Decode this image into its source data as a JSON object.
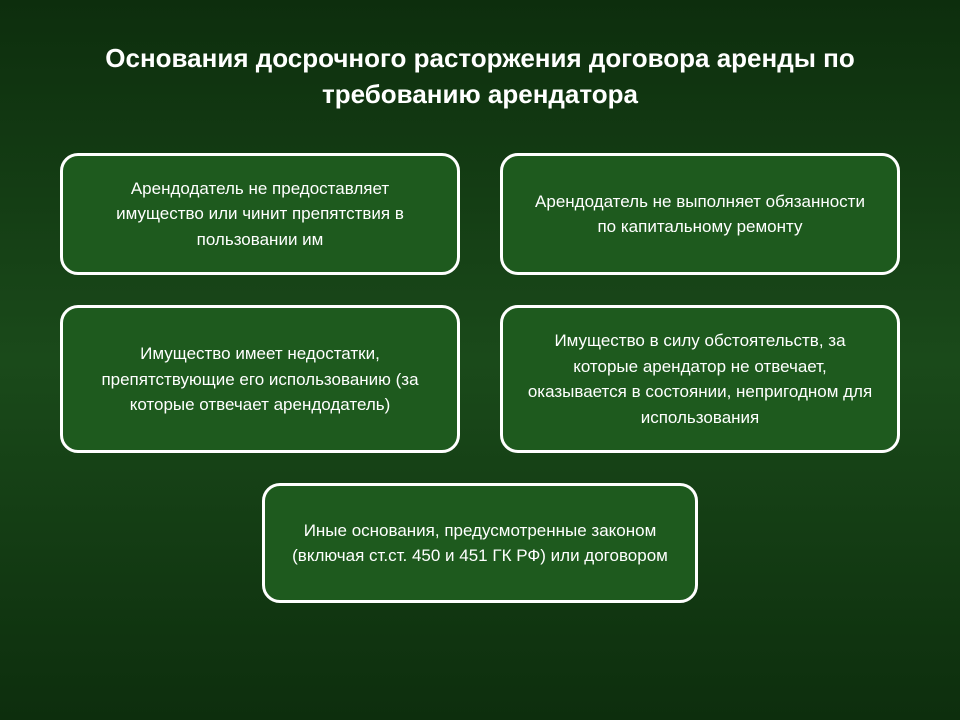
{
  "layout": {
    "type": "infographic",
    "background_gradient": [
      "#0d2e0d",
      "#1a4a1a",
      "#0d2e0d"
    ],
    "box_background": "#1e5a1e",
    "box_border_color": "#ffffff",
    "box_border_width": 3,
    "box_border_radius": 18,
    "text_color": "#ffffff",
    "title_fontsize": 26,
    "body_fontsize": 17
  },
  "title": "Основания досрочного расторжения договора аренды по требованию арендатора",
  "boxes": {
    "top_left": "Арендодатель не предоставляет имущество или чинит препятствия в пользовании им",
    "top_right": "Арендодатель не выполняет обязанности по капитальному ремонту",
    "mid_left": "Имущество имеет недостатки, препятствующие его использованию (за которые отвечает арендодатель)",
    "mid_right": "Имущество в силу обстоятельств, за которые арендатор не отвечает, оказывается в состоянии, непригодном для использования",
    "bottom": "Иные основания, предусмотренные законом (включая ст.ст. 450 и 451 ГК РФ) или договором"
  }
}
